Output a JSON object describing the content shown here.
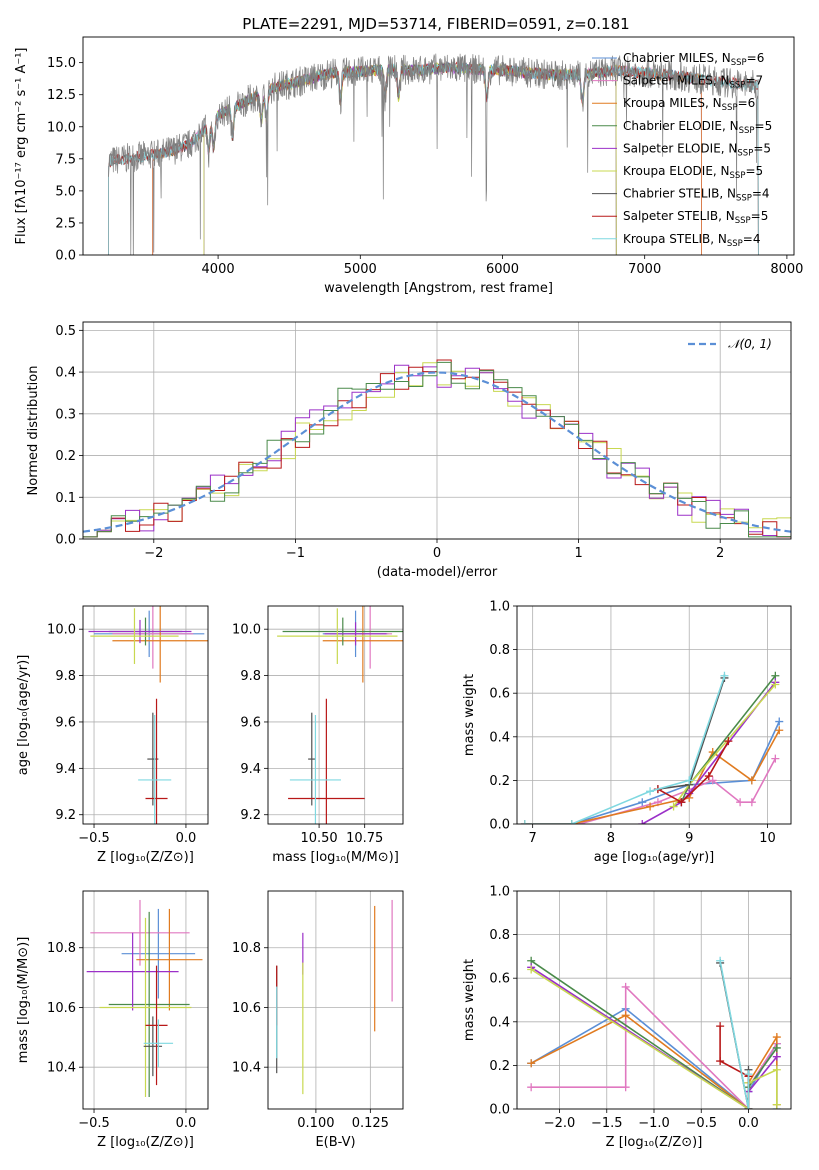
{
  "figure_title": "PLATE=2291, MJD=53714, FIBERID=0591, z=0.181",
  "colors": {
    "Chabrier MILES": "#5b8fd6",
    "Salpeter MILES": "#e078c0",
    "Kroupa MILES": "#e07b20",
    "Chabrier ELODIE": "#4a8a4a",
    "Salpeter ELODIE": "#9b30c8",
    "Kroupa ELODIE": "#c8d850",
    "Chabrier STELIB": "#505050",
    "Salpeter STELIB": "#b81818",
    "Kroupa STELIB": "#7fd8e0",
    "data_grey": "#808080",
    "gaussian": "#5b8fd6"
  },
  "chart_data": [
    {
      "id": "spectrum",
      "type": "line",
      "title": "PLATE=2291, MJD=53714, FIBERID=0591, z=0.181",
      "xlabel": "wavelength [Angstrom, rest frame]",
      "ylabel": "Flux [fλ10⁻¹⁷ erg cm⁻² s⁻¹ A⁻¹]",
      "xlim": [
        3050,
        8050
      ],
      "ylim": [
        0,
        17
      ],
      "xticks": [
        "4000",
        "5000",
        "6000",
        "7000",
        "8000"
      ],
      "yticks": [
        "0.0",
        "2.5",
        "5.0",
        "7.5",
        "10.0",
        "12.5",
        "15.0"
      ],
      "legend_position": "right",
      "legend": [
        {
          "model": "Chabrier MILES",
          "label": "Chabrier MILES, N",
          "sub": "SSP",
          "n": "=6"
        },
        {
          "model": "Salpeter MILES",
          "label": "Salpeter MILES, N",
          "sub": "SSP",
          "n": "=7"
        },
        {
          "model": "Kroupa MILES",
          "label": "Kroupa MILES, N",
          "sub": "SSP",
          "n": "=6"
        },
        {
          "model": "Chabrier ELODIE",
          "label": "Chabrier ELODIE, N",
          "sub": "SSP",
          "n": "=5"
        },
        {
          "model": "Salpeter ELODIE",
          "label": "Salpeter ELODIE, N",
          "sub": "SSP",
          "n": "=5"
        },
        {
          "model": "Kroupa ELODIE",
          "label": "Kroupa ELODIE, N",
          "sub": "SSP",
          "n": "=5"
        },
        {
          "model": "Chabrier STELIB",
          "label": "Chabrier STELIB, N",
          "sub": "SSP",
          "n": "=4"
        },
        {
          "model": "Salpeter STELIB",
          "label": "Salpeter STELIB, N",
          "sub": "SSP",
          "n": "=5"
        },
        {
          "model": "Kroupa STELIB",
          "label": "Kroupa STELIB, N",
          "sub": "SSP",
          "n": "=4"
        }
      ],
      "continuum_x": [
        3230,
        3400,
        3600,
        3800,
        4000,
        4200,
        4400,
        4600,
        4800,
        5000,
        5200,
        5400,
        5600,
        5800,
        6000,
        6200,
        6400,
        6600,
        6800,
        7000,
        7200,
        7400,
        7600,
        7800
      ],
      "continuum_y": [
        7.3,
        7.6,
        7.9,
        8.6,
        10.9,
        12.0,
        13.1,
        13.6,
        14.2,
        14.3,
        14.5,
        14.4,
        14.6,
        14.5,
        14.4,
        14.2,
        14.0,
        14.1,
        14.4,
        14.2,
        14.0,
        13.7,
        13.4,
        13.2
      ],
      "model_ranges": {
        "Chabrier MILES": [
          3540,
          7400
        ],
        "Salpeter MILES": [
          3540,
          7400
        ],
        "Kroupa MILES": [
          3540,
          7400
        ],
        "Chabrier ELODIE": [
          3900,
          6800
        ],
        "Salpeter ELODIE": [
          3900,
          6800
        ],
        "Kroupa ELODIE": [
          3900,
          6800
        ],
        "Chabrier STELIB": [
          3230,
          7800
        ],
        "Salpeter STELIB": [
          3230,
          7800
        ],
        "Kroupa STELIB": [
          3230,
          7800
        ]
      }
    },
    {
      "id": "residuals",
      "type": "line",
      "xlabel": "(data-model)/error",
      "ylabel": "Normed distribution",
      "xlim": [
        -2.5,
        2.5
      ],
      "ylim": [
        0,
        0.52
      ],
      "xticks": [
        "−2",
        "−1",
        "0",
        "1",
        "2"
      ],
      "yticks": [
        "0.0",
        "0.1",
        "0.2",
        "0.3",
        "0.4",
        "0.5"
      ],
      "bin_width": 0.1,
      "legend_position": "top-right",
      "legend_label": "𝒩(0, 1)",
      "series": [
        {
          "model": "Kroupa ELODIE",
          "shift": 0.02
        },
        {
          "model": "Salpeter ELODIE",
          "shift": -0.01
        },
        {
          "model": "Salpeter STELIB",
          "shift": 0.015
        },
        {
          "model": "Chabrier ELODIE",
          "shift": -0.02
        }
      ]
    },
    {
      "id": "age_vs_Z",
      "type": "scatter",
      "xlabel": "Z [log₁₀(Z/Z⊙)]",
      "ylabel": "age  [log₁₀(age/yr)]",
      "xlim": [
        -0.56,
        0.12
      ],
      "ylim": [
        9.16,
        10.1
      ],
      "xticks": [
        "−0.5",
        "0.0"
      ],
      "yticks": [
        "9.2",
        "9.4",
        "9.6",
        "9.8",
        "10.0"
      ],
      "points": [
        {
          "model": "Chabrier MILES",
          "x": -0.2,
          "y": 9.98,
          "xerr": 0.3,
          "yerr": 0.1
        },
        {
          "model": "Salpeter MILES",
          "x": -0.18,
          "y": 9.98,
          "xerr": 0.22,
          "yerr": 0.15
        },
        {
          "model": "Kroupa MILES",
          "x": -0.14,
          "y": 9.95,
          "xerr": 0.26,
          "yerr": 0.18
        },
        {
          "model": "Chabrier ELODIE",
          "x": -0.22,
          "y": 9.99,
          "xerr": 0.2,
          "yerr": 0.06
        },
        {
          "model": "Salpeter ELODIE",
          "x": -0.25,
          "y": 9.99,
          "xerr": 0.28,
          "yerr": 0.05
        },
        {
          "model": "Kroupa ELODIE",
          "x": -0.28,
          "y": 9.97,
          "xerr": 0.24,
          "yerr": 0.12
        },
        {
          "model": "Chabrier STELIB",
          "x": -0.18,
          "y": 9.44,
          "xerr": 0.03,
          "yerr": 0.2
        },
        {
          "model": "Salpeter STELIB",
          "x": -0.16,
          "y": 9.27,
          "xerr": 0.06,
          "yerr": 0.43
        },
        {
          "model": "Kroupa STELIB",
          "x": -0.17,
          "y": 9.35,
          "xerr": 0.09,
          "yerr": 0.28
        }
      ]
    },
    {
      "id": "age_vs_mass",
      "type": "scatter",
      "xlabel": "mass [log₁₀(M/M⊙)]",
      "xlim": [
        10.22,
        10.96
      ],
      "ylim": [
        9.16,
        10.1
      ],
      "xticks": [
        "10.50",
        "10.75"
      ],
      "yticks": [
        "9.2",
        "9.4",
        "9.6",
        "9.8",
        "10.0"
      ],
      "points": [
        {
          "model": "Chabrier MILES",
          "x": 10.7,
          "y": 9.98,
          "xerr": 0.18,
          "yerr": 0.1
        },
        {
          "model": "Salpeter MILES",
          "x": 10.78,
          "y": 9.98,
          "xerr": 0.12,
          "yerr": 0.15
        },
        {
          "model": "Kroupa MILES",
          "x": 10.74,
          "y": 9.95,
          "xerr": 0.22,
          "yerr": 0.18
        },
        {
          "model": "Chabrier ELODIE",
          "x": 10.63,
          "y": 9.99,
          "xerr": 0.33,
          "yerr": 0.06
        },
        {
          "model": "Salpeter ELODIE",
          "x": 10.7,
          "y": 9.98,
          "xerr": 0.17,
          "yerr": 0.05
        },
        {
          "model": "Kroupa ELODIE",
          "x": 10.6,
          "y": 9.97,
          "xerr": 0.33,
          "yerr": 0.12
        },
        {
          "model": "Chabrier STELIB",
          "x": 10.46,
          "y": 9.44,
          "xerr": 0.02,
          "yerr": 0.2
        },
        {
          "model": "Salpeter STELIB",
          "x": 10.54,
          "y": 9.27,
          "xerr": 0.21,
          "yerr": 0.43
        },
        {
          "model": "Kroupa STELIB",
          "x": 10.48,
          "y": 9.35,
          "xerr": 0.14,
          "yerr": 0.28
        }
      ]
    },
    {
      "id": "mass_weight_vs_age",
      "type": "line",
      "xlabel": "age  [log₁₀(age/yr)]",
      "ylabel": "mass weight",
      "xlim": [
        6.8,
        10.3
      ],
      "ylim": [
        0,
        1.0
      ],
      "xticks": [
        "7",
        "8",
        "9",
        "10"
      ],
      "yticks": [
        "0.0",
        "0.2",
        "0.4",
        "0.6",
        "0.8",
        "1.0"
      ],
      "series": [
        {
          "model": "Chabrier MILES",
          "x": [
            6.9,
            7.5,
            8.4,
            9.0,
            9.8,
            10.15
          ],
          "y": [
            0.0,
            0.0,
            0.1,
            0.18,
            0.2,
            0.47
          ]
        },
        {
          "model": "Salpeter MILES",
          "x": [
            6.9,
            7.6,
            8.6,
            9.3,
            9.65,
            9.8,
            10.1
          ],
          "y": [
            0.0,
            0.0,
            0.1,
            0.2,
            0.1,
            0.1,
            0.3
          ]
        },
        {
          "model": "Kroupa MILES",
          "x": [
            6.9,
            7.5,
            8.5,
            9.0,
            9.3,
            9.8,
            10.15
          ],
          "y": [
            0.0,
            0.0,
            0.08,
            0.12,
            0.33,
            0.2,
            0.43
          ]
        },
        {
          "model": "Chabrier ELODIE",
          "x": [
            8.9,
            9.0,
            10.1
          ],
          "y": [
            0.1,
            0.18,
            0.68
          ]
        },
        {
          "model": "Salpeter ELODIE",
          "x": [
            8.4,
            8.9,
            9.0,
            10.1
          ],
          "y": [
            0.0,
            0.1,
            0.14,
            0.65
          ]
        },
        {
          "model": "Kroupa ELODIE",
          "x": [
            8.8,
            9.0,
            10.1
          ],
          "y": [
            0.08,
            0.18,
            0.64
          ]
        },
        {
          "model": "Chabrier STELIB",
          "x": [
            8.6,
            9.0,
            9.45
          ],
          "y": [
            0.16,
            0.18,
            0.67
          ]
        },
        {
          "model": "Salpeter STELIB",
          "x": [
            8.6,
            8.9,
            9.25,
            9.5
          ],
          "y": [
            0.16,
            0.1,
            0.22,
            0.38
          ]
        },
        {
          "model": "Kroupa STELIB",
          "x": [
            6.9,
            7.5,
            8.5,
            9.0,
            9.45
          ],
          "y": [
            0.0,
            0.0,
            0.15,
            0.2,
            0.68
          ]
        }
      ]
    },
    {
      "id": "mass_vs_Z",
      "type": "scatter",
      "xlabel": "Z [log₁₀(Z/Z⊙)]",
      "ylabel": "mass [log₁₀(M/M⊙)]",
      "xlim": [
        -0.56,
        0.12
      ],
      "ylim": [
        10.26,
        10.99
      ],
      "xticks": [
        "−0.5",
        "0.0"
      ],
      "yticks": [
        "10.4",
        "10.6",
        "10.8"
      ],
      "points": [
        {
          "model": "Chabrier MILES",
          "x": -0.15,
          "y": 10.78,
          "xerr": 0.2,
          "yerr": 0.15
        },
        {
          "model": "Salpeter MILES",
          "x": -0.25,
          "y": 10.85,
          "xerr": 0.27,
          "yerr": 0.11
        },
        {
          "model": "Kroupa MILES",
          "x": -0.09,
          "y": 10.76,
          "xerr": 0.18,
          "yerr": 0.17
        },
        {
          "model": "Chabrier ELODIE",
          "x": -0.2,
          "y": 10.61,
          "xerr": 0.22,
          "yerr": 0.31
        },
        {
          "model": "Salpeter ELODIE",
          "x": -0.29,
          "y": 10.72,
          "xerr": 0.25,
          "yerr": 0.13
        },
        {
          "model": "Kroupa ELODIE",
          "x": -0.22,
          "y": 10.6,
          "xerr": 0.25,
          "yerr": 0.3
        },
        {
          "model": "Chabrier STELIB",
          "x": -0.18,
          "y": 10.47,
          "xerr": 0.05,
          "yerr": 0.1
        },
        {
          "model": "Salpeter STELIB",
          "x": -0.16,
          "y": 10.54,
          "xerr": 0.06,
          "yerr": 0.2
        },
        {
          "model": "Kroupa STELIB",
          "x": -0.15,
          "y": 10.48,
          "xerr": 0.08,
          "yerr": 0.08
        }
      ]
    },
    {
      "id": "mass_vs_ebv",
      "type": "scatter",
      "xlabel": "E(B-V)",
      "xlim": [
        0.078,
        0.14
      ],
      "ylim": [
        10.26,
        10.99
      ],
      "xticks": [
        "0.100",
        "0.125"
      ],
      "yticks": [
        "10.4",
        "10.6",
        "10.8"
      ],
      "points": [
        {
          "model": "Chabrier STELIB",
          "x": 0.082,
          "y": 10.56,
          "yerr": 0.18
        },
        {
          "model": "Salpeter STELIB",
          "x": 0.082,
          "y": 10.64,
          "yerr": 0.1
        },
        {
          "model": "Kroupa STELIB",
          "x": 0.082,
          "y": 10.55,
          "yerr": 0.12
        },
        {
          "model": "Salpeter ELODIE",
          "x": 0.094,
          "y": 10.78,
          "yerr": 0.07
        },
        {
          "model": "Kroupa ELODIE",
          "x": 0.094,
          "y": 10.53,
          "yerr": 0.22
        },
        {
          "model": "Kroupa MILES",
          "x": 0.127,
          "y": 10.73,
          "yerr": 0.21
        },
        {
          "model": "Salpeter MILES",
          "x": 0.135,
          "y": 10.79,
          "yerr": 0.17
        }
      ]
    },
    {
      "id": "mass_weight_vs_Z",
      "type": "line",
      "xlabel": "Z [log₁₀(Z/Z⊙)]",
      "ylabel": "mass weight",
      "xlim": [
        -2.45,
        0.45
      ],
      "ylim": [
        0,
        1.0
      ],
      "xticks": [
        "−2.0",
        "−1.5",
        "−1.0",
        "−0.5",
        "0.0"
      ],
      "yticks": [
        "0.0",
        "0.2",
        "0.4",
        "0.6",
        "0.8",
        "1.0"
      ],
      "series": [
        {
          "model": "Chabrier MILES",
          "x": [
            -2.3,
            -1.3,
            0.0,
            0.0,
            0.3,
            0.3
          ],
          "y": [
            0.21,
            0.46,
            0.0,
            0.08,
            0.3,
            0.0
          ]
        },
        {
          "model": "Salpeter MILES",
          "x": [
            -2.3,
            -1.3,
            -1.3,
            0.0,
            0.0,
            0.3
          ],
          "y": [
            0.1,
            0.1,
            0.56,
            0.0,
            0.1,
            0.3
          ]
        },
        {
          "model": "Kroupa MILES",
          "x": [
            -2.3,
            -1.3,
            0.0,
            0.0,
            0.3,
            0.3
          ],
          "y": [
            0.21,
            0.43,
            0.0,
            0.12,
            0.33,
            0.02
          ]
        },
        {
          "model": "Chabrier ELODIE",
          "x": [
            -2.3,
            0.0,
            0.0,
            0.3
          ],
          "y": [
            0.68,
            0.0,
            0.1,
            0.28
          ]
        },
        {
          "model": "Salpeter ELODIE",
          "x": [
            -2.3,
            0.0,
            0.0,
            0.3
          ],
          "y": [
            0.65,
            0.0,
            0.08,
            0.24
          ]
        },
        {
          "model": "Kroupa ELODIE",
          "x": [
            -2.3,
            0.0,
            0.0,
            0.3,
            0.3
          ],
          "y": [
            0.64,
            0.0,
            0.12,
            0.18,
            0.02
          ]
        },
        {
          "model": "Chabrier STELIB",
          "x": [
            -0.3,
            0.0,
            0.0
          ],
          "y": [
            0.67,
            0.0,
            0.18
          ]
        },
        {
          "model": "Salpeter STELIB",
          "x": [
            -0.3,
            -0.3,
            0.0,
            0.0
          ],
          "y": [
            0.38,
            0.22,
            0.15,
            0.0
          ]
        },
        {
          "model": "Kroupa STELIB",
          "x": [
            -0.3,
            0.0,
            0.0
          ],
          "y": [
            0.68,
            0.0,
            0.16
          ]
        }
      ]
    }
  ]
}
